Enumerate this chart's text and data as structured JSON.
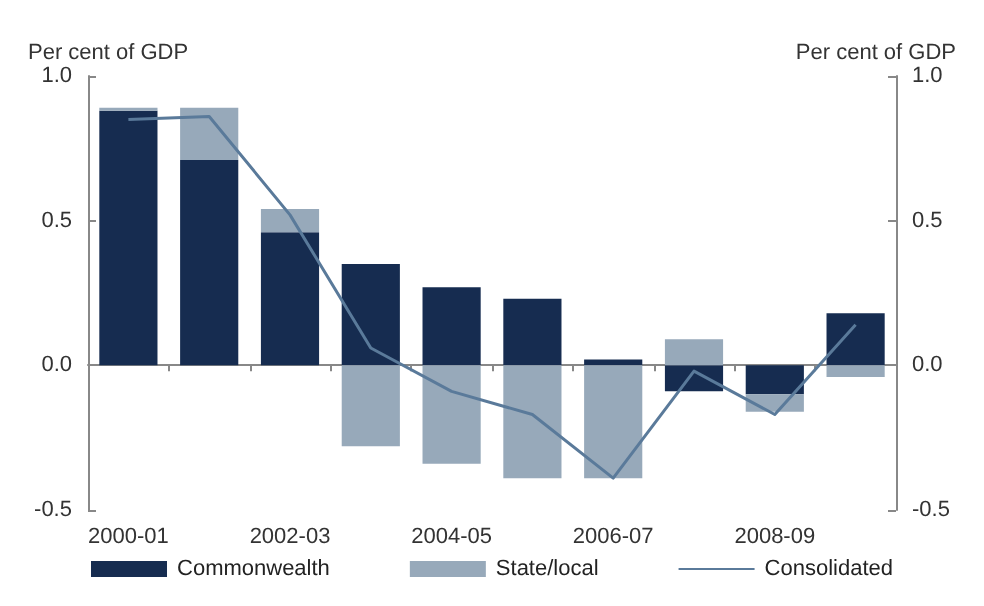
{
  "chart_data": {
    "type": "bar",
    "stacked": true,
    "ylabel": "Per cent of GDP",
    "y2label": "Per cent of GDP",
    "categories": [
      "2000-01",
      null,
      "2002-03",
      null,
      "2004-05",
      null,
      "2006-07",
      null,
      "2008-09",
      null
    ],
    "series": [
      {
        "name": "Commonwealth",
        "color": "#162c50",
        "values": [
          0.88,
          0.71,
          0.46,
          0.35,
          0.27,
          0.23,
          0.02,
          -0.09,
          -0.1,
          0.18
        ]
      },
      {
        "name": "State/local",
        "color": "#97a9ba",
        "values": [
          0.01,
          0.18,
          0.08,
          -0.28,
          -0.34,
          -0.39,
          -0.39,
          0.09,
          -0.06,
          -0.04
        ]
      },
      {
        "name": "Consolidated",
        "type": "line",
        "color": "#5a7a9a",
        "values": [
          0.85,
          0.86,
          0.52,
          0.06,
          -0.09,
          -0.17,
          -0.39,
          -0.02,
          -0.17,
          0.14
        ]
      }
    ],
    "ylim": [
      -0.5,
      1.0
    ],
    "yticks": [
      {
        "value": -0.5,
        "label": "-0.5"
      },
      {
        "value": 0,
        "label": "0.0"
      },
      {
        "value": 0.5,
        "label": "0.5"
      },
      {
        "value": 1,
        "label": "1.0"
      }
    ],
    "y2lim": [
      -0.5,
      1.0
    ],
    "y2ticks": [
      {
        "value": -0.5,
        "label": "-0.5"
      },
      {
        "value": 0,
        "label": "0.0"
      },
      {
        "value": 0.5,
        "label": "0.5"
      },
      {
        "value": 1,
        "label": "1.0"
      }
    ],
    "legend": "bottom",
    "marker": "none",
    "line_style": "solid"
  }
}
